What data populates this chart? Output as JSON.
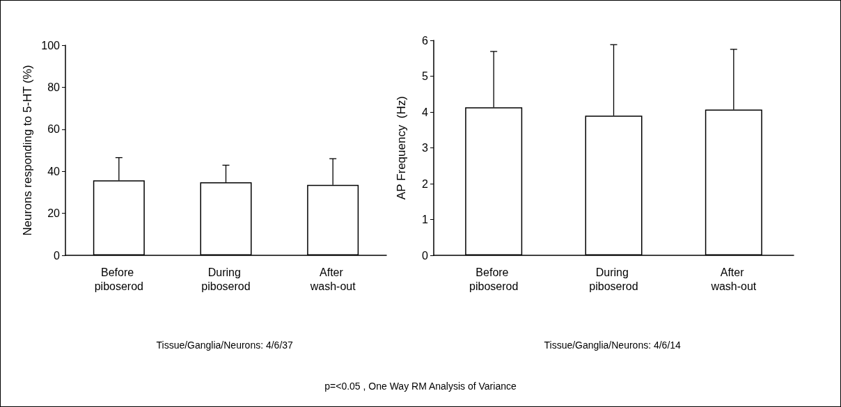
{
  "chart_data": [
    {
      "type": "bar",
      "ylabel": "Neurons responding to 5-HT (%)",
      "categories": [
        "Before piboserod",
        "During piboserod",
        "After wash-out"
      ],
      "values": [
        35.7,
        34.8,
        33.5
      ],
      "errors": [
        [
          35.7,
          46.5
        ],
        [
          34.8,
          42.9
        ],
        [
          33.5,
          46.0
        ]
      ],
      "color": "#ffffff",
      "ylim": [
        0,
        100
      ],
      "yticks": [
        0,
        20,
        40,
        60,
        80,
        100
      ],
      "grid": false,
      "annotations": [
        "Tissue/Ganglia/Neurons: 4/6/37",
        "p=<0.05 , One Way RM Analysis of Variance"
      ]
    },
    {
      "type": "bar",
      "ylabel": "AP Frequency  (Hz)",
      "categories": [
        "Before piboserod",
        "During piboserod",
        "After wash-out"
      ],
      "values": [
        4.13,
        3.9,
        4.07
      ],
      "errors": [
        [
          4.13,
          5.69
        ],
        [
          3.9,
          5.88
        ],
        [
          4.07,
          5.75
        ]
      ],
      "color": "#ffffff",
      "ylim": [
        0,
        6
      ],
      "yticks": [
        0,
        1,
        2,
        3,
        4,
        5,
        6
      ],
      "grid": false,
      "annotations": [
        "Tissue/Ganglia/Neurons: 4/6/14"
      ]
    }
  ]
}
